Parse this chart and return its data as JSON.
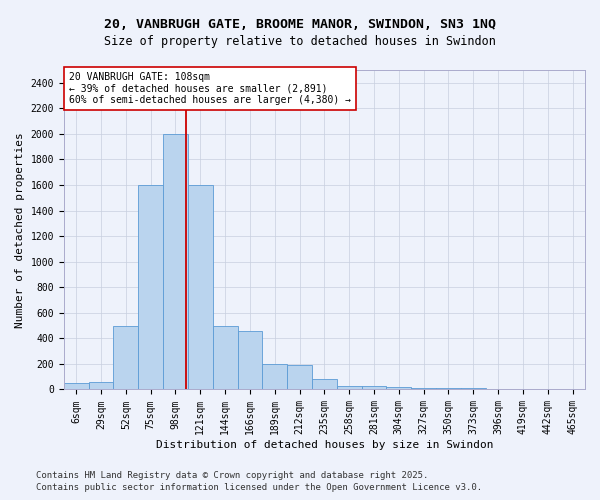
{
  "title_line1": "20, VANBRUGH GATE, BROOME MANOR, SWINDON, SN3 1NQ",
  "title_line2": "Size of property relative to detached houses in Swindon",
  "xlabel": "Distribution of detached houses by size in Swindon",
  "ylabel": "Number of detached properties",
  "categories": [
    "6sqm",
    "29sqm",
    "52sqm",
    "75sqm",
    "98sqm",
    "121sqm",
    "144sqm",
    "166sqm",
    "189sqm",
    "212sqm",
    "235sqm",
    "258sqm",
    "281sqm",
    "304sqm",
    "327sqm",
    "350sqm",
    "373sqm",
    "396sqm",
    "419sqm",
    "442sqm",
    "465sqm"
  ],
  "values": [
    50,
    55,
    500,
    1600,
    2000,
    1600,
    500,
    460,
    200,
    190,
    80,
    30,
    25,
    20,
    15,
    15,
    10,
    5,
    5,
    5,
    5
  ],
  "bar_color": "#bad4ee",
  "bar_edge_color": "#5b9bd5",
  "vline_x": 4.43,
  "vline_color": "#cc0000",
  "annotation_text": "20 VANBRUGH GATE: 108sqm\n← 39% of detached houses are smaller (2,891)\n60% of semi-detached houses are larger (4,380) →",
  "annotation_box_color": "#ffffff",
  "annotation_box_edge": "#cc0000",
  "ylim": [
    0,
    2500
  ],
  "yticks": [
    0,
    200,
    400,
    600,
    800,
    1000,
    1200,
    1400,
    1600,
    1800,
    2000,
    2200,
    2400
  ],
  "footer_line1": "Contains HM Land Registry data © Crown copyright and database right 2025.",
  "footer_line2": "Contains public sector information licensed under the Open Government Licence v3.0.",
  "bg_color": "#eef2fb",
  "grid_color": "#c8cfdf",
  "title_fontsize": 9.5,
  "subtitle_fontsize": 8.5,
  "axis_label_fontsize": 8,
  "tick_fontsize": 7,
  "annot_fontsize": 7,
  "footer_fontsize": 6.5
}
